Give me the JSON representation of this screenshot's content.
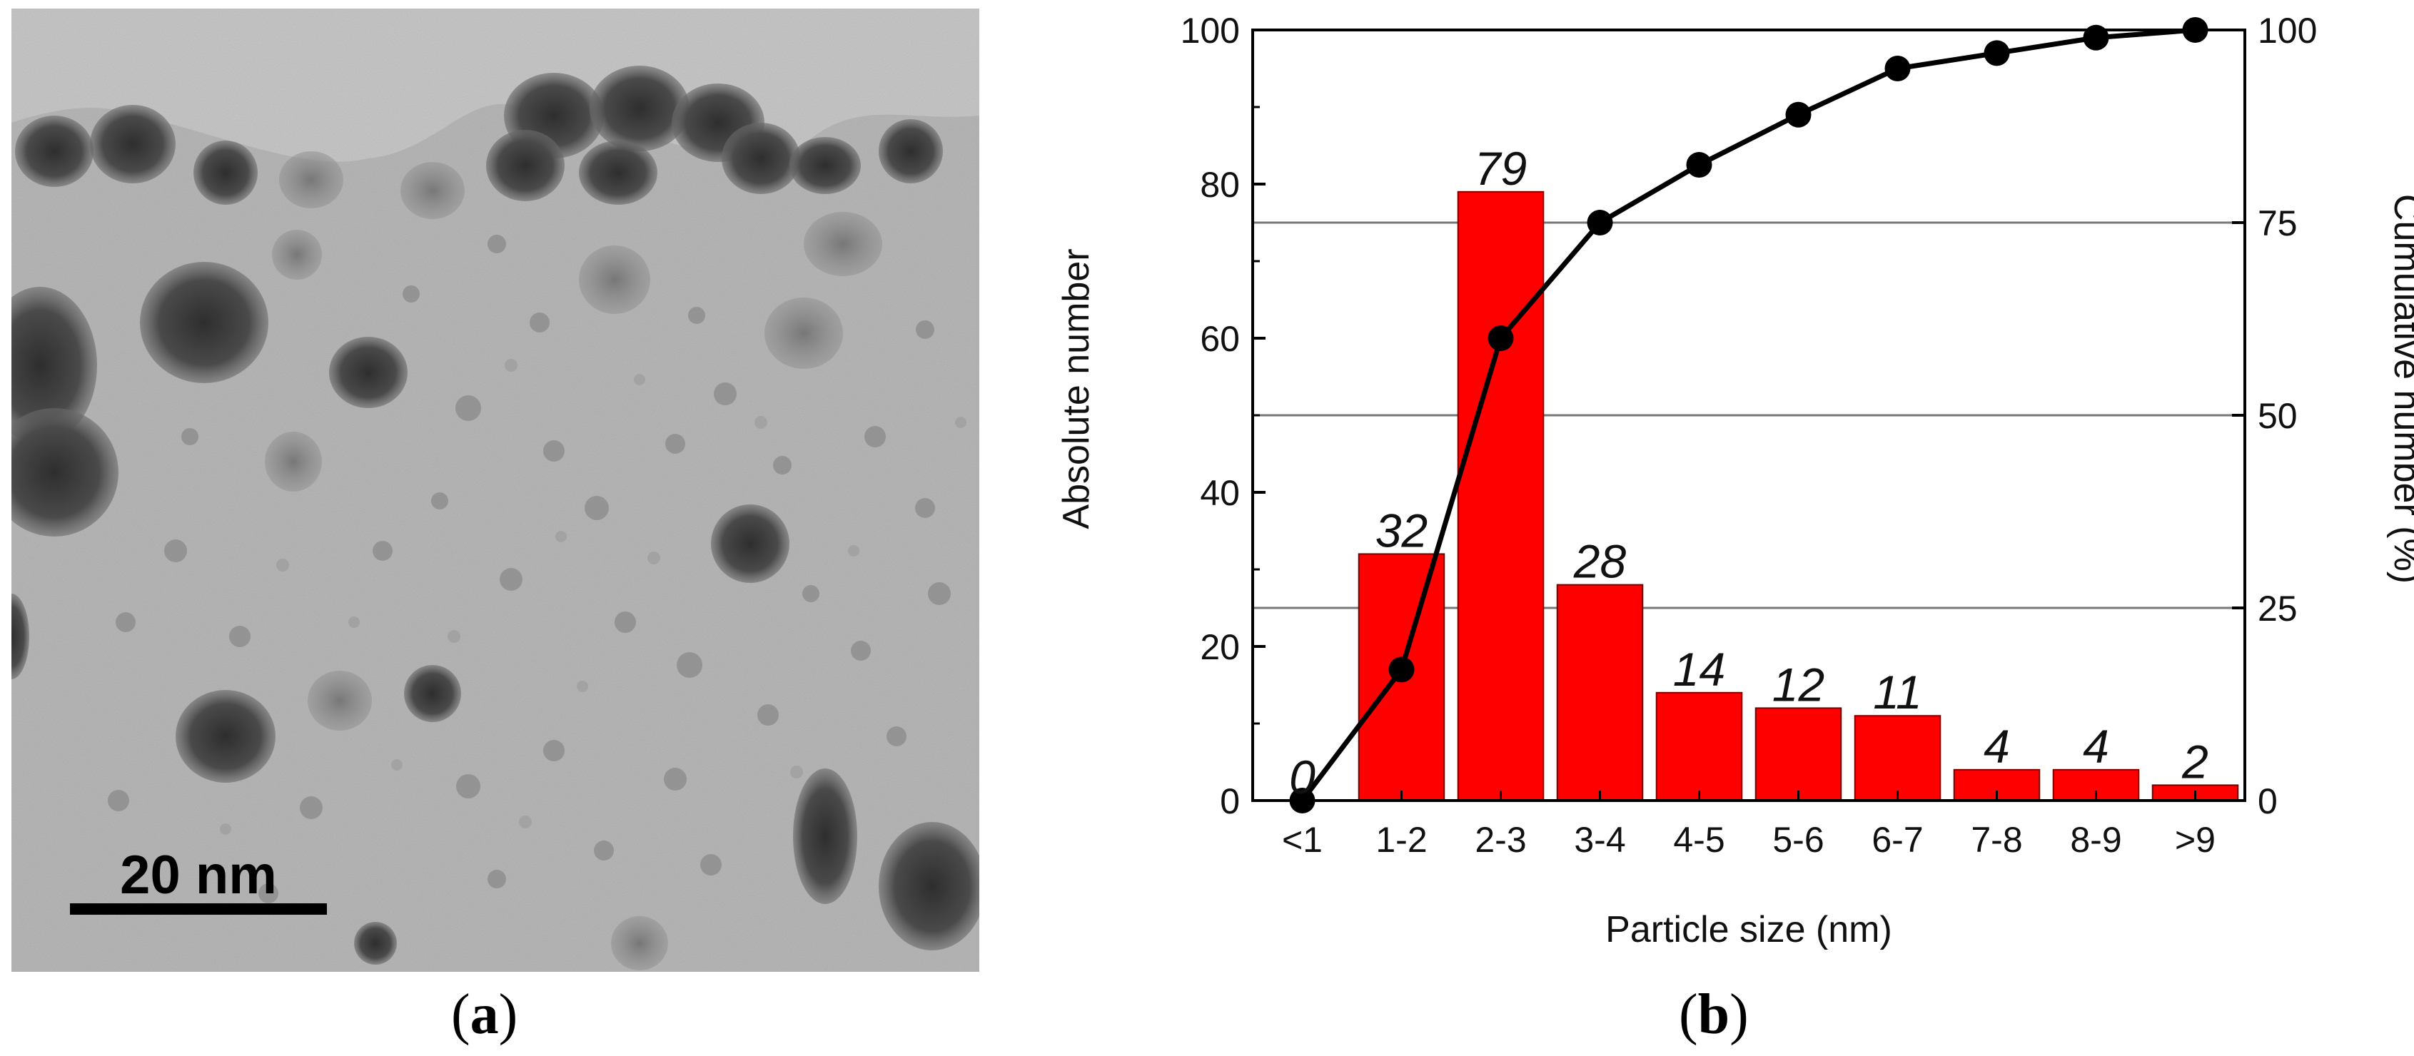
{
  "panels": {
    "a": {
      "label_open": "(",
      "label_letter": "a",
      "label_close": ")"
    },
    "b": {
      "label_open": "(",
      "label_letter": "b",
      "label_close": ")"
    }
  },
  "tem_image": {
    "scale_bar_label": "20 nm",
    "colors": {
      "background": "#b9b9b9",
      "particle": "#3a3a3a",
      "scale_bar": "#000000"
    }
  },
  "chart_data": {
    "type": "bar",
    "categories": [
      "<1",
      "1-2",
      "2-3",
      "3-4",
      "4-5",
      "5-6",
      "6-7",
      "7-8",
      "8-9",
      ">9"
    ],
    "series": [
      {
        "type": "bar",
        "axis": "left",
        "values": [
          0,
          32,
          79,
          28,
          14,
          12,
          11,
          4,
          4,
          2
        ],
        "color": "#ff0000"
      },
      {
        "type": "line",
        "axis": "right",
        "values": [
          0,
          17,
          60,
          75,
          82.5,
          89,
          95,
          97,
          99,
          100
        ],
        "color": "#000000"
      }
    ],
    "data_labels": [
      "0",
      "32",
      "79",
      "28",
      "14",
      "12",
      "11",
      "4",
      "4",
      "2"
    ],
    "title": "",
    "xlabel": "Particle size (nm)",
    "ylabel": "Absolute number",
    "y2label": "Cumulative number (%)",
    "ylim": [
      0,
      100
    ],
    "y2lim": [
      0,
      100
    ],
    "yticks": [
      0,
      20,
      40,
      60,
      80,
      100
    ],
    "y2ticks": [
      0,
      25,
      50,
      75,
      100
    ],
    "grid": "horizontal lines at right-axis ticks",
    "legend": "none"
  }
}
